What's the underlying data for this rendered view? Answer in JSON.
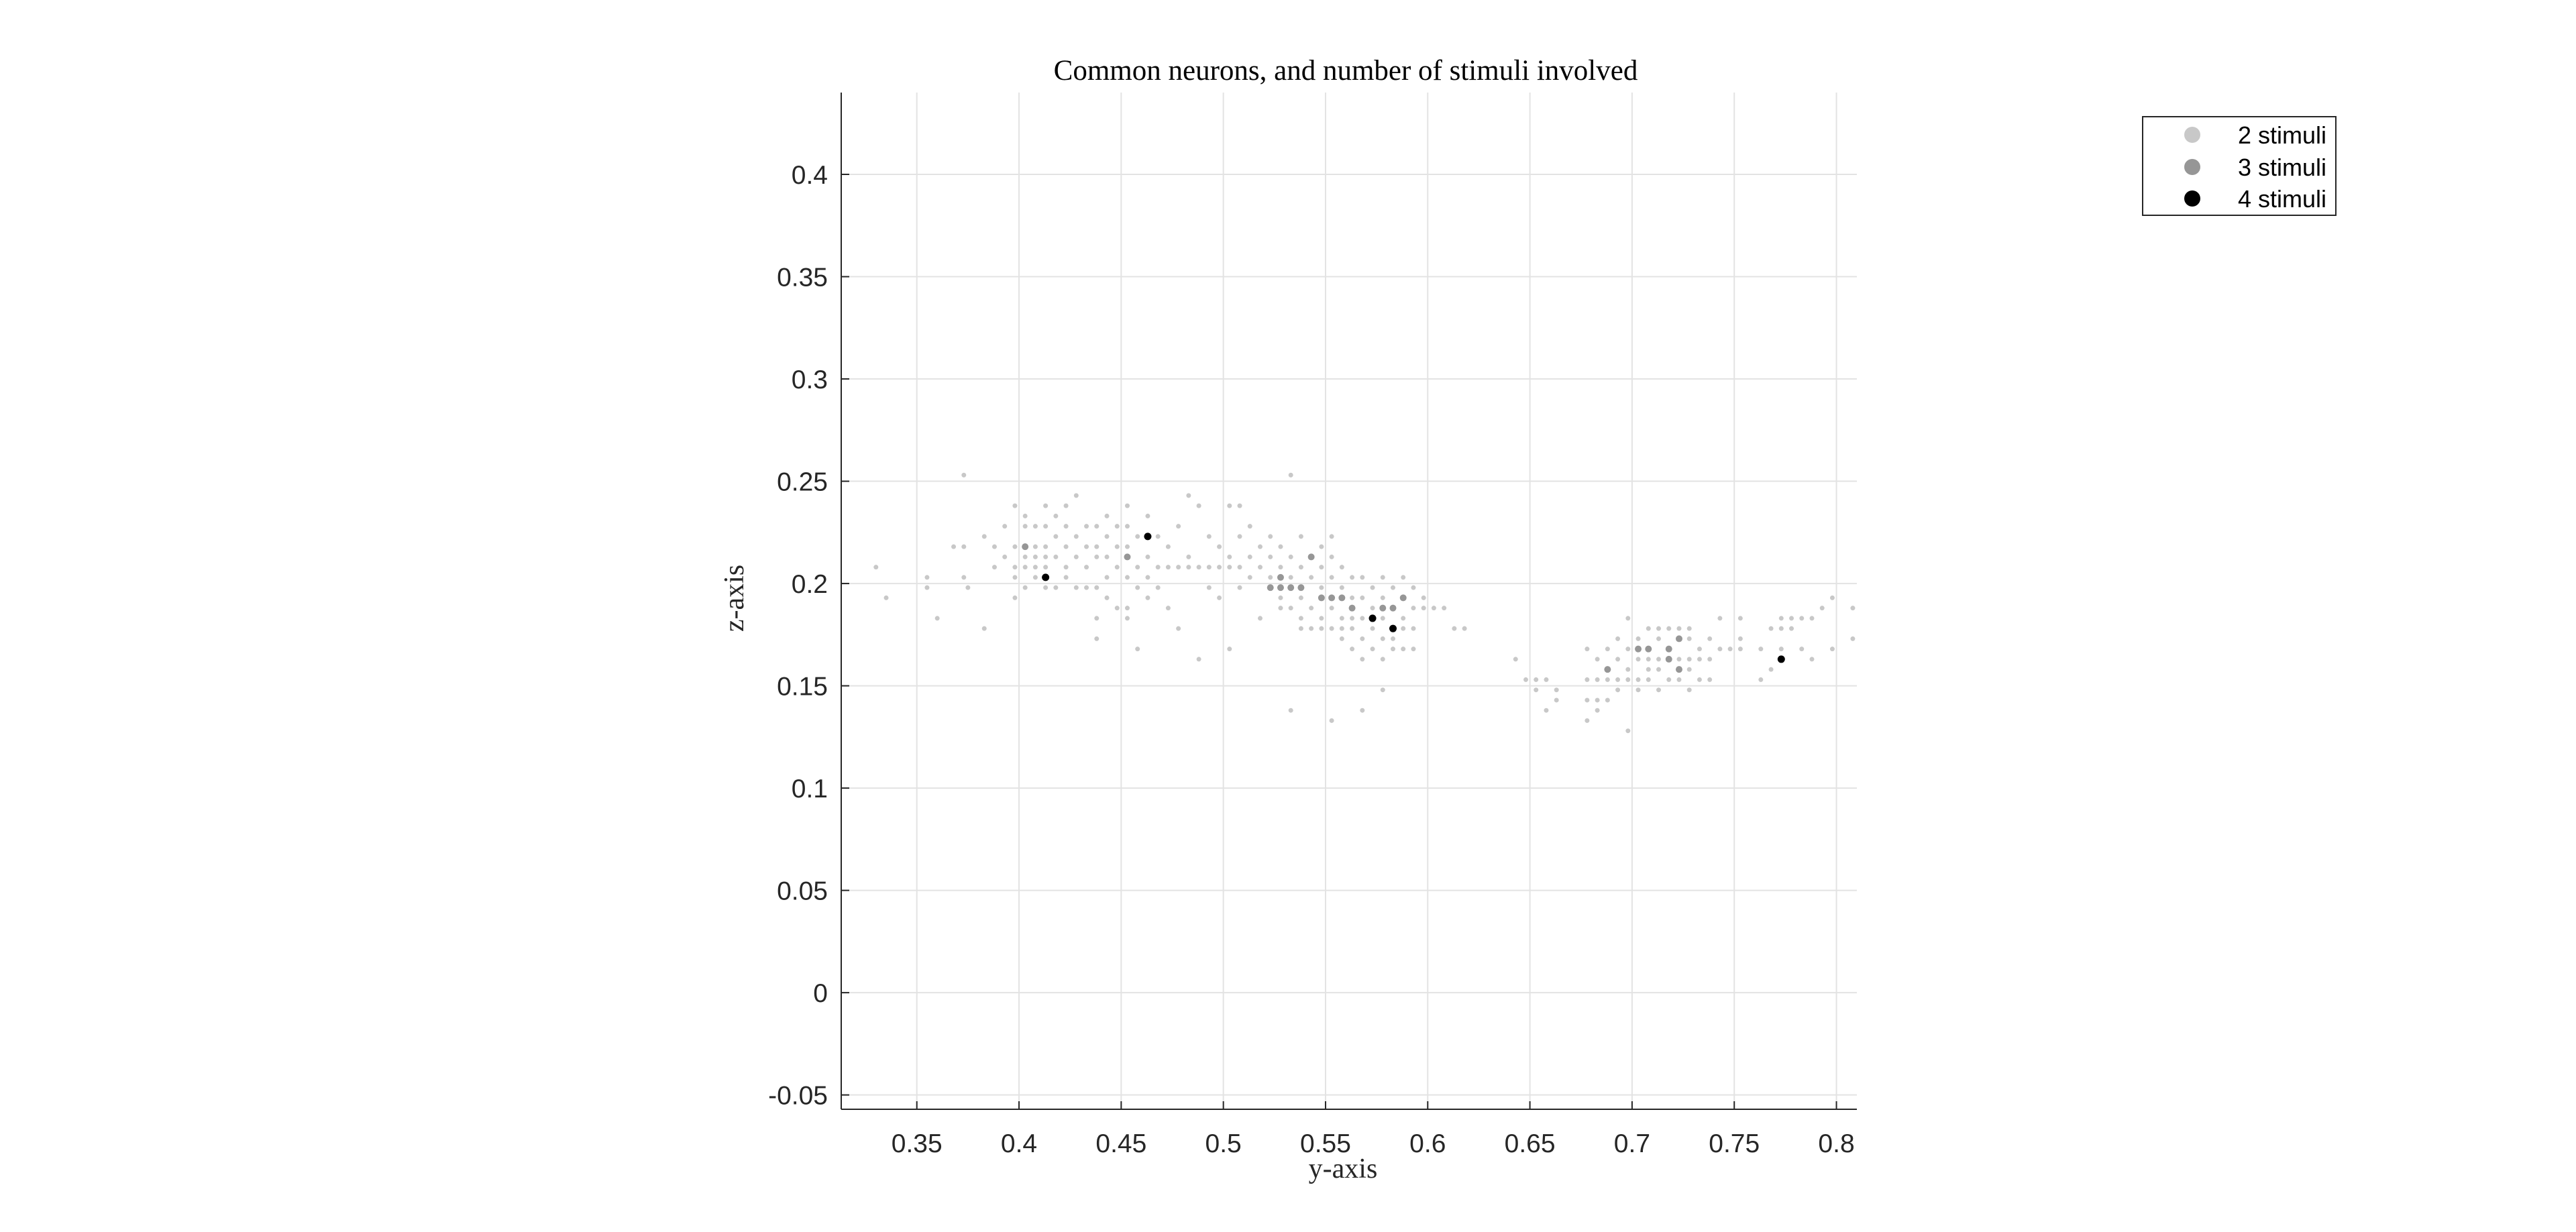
{
  "chart_data": {
    "type": "scatter",
    "title": "Common neurons, and number of stimuli involved",
    "xlabel": "y-axis",
    "ylabel": "z-axis",
    "xlim": [
      0.313,
      0.81
    ],
    "ylim": [
      -0.057,
      0.44
    ],
    "grid": true,
    "legend_position": "top-right",
    "x_ticks": [
      "0.35",
      "0.4",
      "0.45",
      "0.5",
      "0.55",
      "0.6",
      "0.65",
      "0.7",
      "0.75",
      "0.8"
    ],
    "y_ticks": [
      "-0.05",
      "0",
      "0.05",
      "0.1",
      "0.15",
      "0.2",
      "0.25",
      "0.3",
      "0.35",
      "0.4"
    ],
    "series": [
      {
        "name": "2 stimuli",
        "color": "#c8c8c8",
        "points": [
          [
            0.33,
            0.208
          ],
          [
            0.335,
            0.193
          ],
          [
            0.355,
            0.203
          ],
          [
            0.355,
            0.198
          ],
          [
            0.36,
            0.183
          ],
          [
            0.368,
            0.218
          ],
          [
            0.373,
            0.218
          ],
          [
            0.373,
            0.253
          ],
          [
            0.373,
            0.203
          ],
          [
            0.375,
            0.198
          ],
          [
            0.383,
            0.223
          ],
          [
            0.383,
            0.178
          ],
          [
            0.388,
            0.218
          ],
          [
            0.388,
            0.208
          ],
          [
            0.393,
            0.228
          ],
          [
            0.393,
            0.213
          ],
          [
            0.398,
            0.238
          ],
          [
            0.398,
            0.218
          ],
          [
            0.398,
            0.208
          ],
          [
            0.398,
            0.203
          ],
          [
            0.398,
            0.193
          ],
          [
            0.403,
            0.233
          ],
          [
            0.403,
            0.228
          ],
          [
            0.403,
            0.213
          ],
          [
            0.403,
            0.208
          ],
          [
            0.403,
            0.198
          ],
          [
            0.408,
            0.228
          ],
          [
            0.408,
            0.218
          ],
          [
            0.408,
            0.213
          ],
          [
            0.408,
            0.208
          ],
          [
            0.408,
            0.203
          ],
          [
            0.413,
            0.238
          ],
          [
            0.413,
            0.228
          ],
          [
            0.413,
            0.218
          ],
          [
            0.413,
            0.213
          ],
          [
            0.413,
            0.208
          ],
          [
            0.413,
            0.198
          ],
          [
            0.418,
            0.233
          ],
          [
            0.418,
            0.223
          ],
          [
            0.418,
            0.213
          ],
          [
            0.418,
            0.198
          ],
          [
            0.423,
            0.238
          ],
          [
            0.423,
            0.228
          ],
          [
            0.423,
            0.218
          ],
          [
            0.423,
            0.208
          ],
          [
            0.423,
            0.203
          ],
          [
            0.428,
            0.243
          ],
          [
            0.428,
            0.223
          ],
          [
            0.428,
            0.213
          ],
          [
            0.428,
            0.198
          ],
          [
            0.433,
            0.228
          ],
          [
            0.433,
            0.218
          ],
          [
            0.433,
            0.208
          ],
          [
            0.433,
            0.198
          ],
          [
            0.438,
            0.228
          ],
          [
            0.438,
            0.218
          ],
          [
            0.438,
            0.213
          ],
          [
            0.438,
            0.198
          ],
          [
            0.438,
            0.183
          ],
          [
            0.438,
            0.173
          ],
          [
            0.443,
            0.233
          ],
          [
            0.443,
            0.223
          ],
          [
            0.443,
            0.213
          ],
          [
            0.443,
            0.203
          ],
          [
            0.443,
            0.193
          ],
          [
            0.448,
            0.228
          ],
          [
            0.448,
            0.218
          ],
          [
            0.448,
            0.208
          ],
          [
            0.448,
            0.188
          ],
          [
            0.453,
            0.238
          ],
          [
            0.453,
            0.228
          ],
          [
            0.453,
            0.218
          ],
          [
            0.453,
            0.203
          ],
          [
            0.453,
            0.188
          ],
          [
            0.453,
            0.183
          ],
          [
            0.458,
            0.223
          ],
          [
            0.458,
            0.208
          ],
          [
            0.458,
            0.198
          ],
          [
            0.458,
            0.168
          ],
          [
            0.463,
            0.233
          ],
          [
            0.463,
            0.213
          ],
          [
            0.463,
            0.203
          ],
          [
            0.463,
            0.193
          ],
          [
            0.468,
            0.223
          ],
          [
            0.468,
            0.208
          ],
          [
            0.468,
            0.198
          ],
          [
            0.473,
            0.218
          ],
          [
            0.473,
            0.208
          ],
          [
            0.473,
            0.188
          ],
          [
            0.478,
            0.228
          ],
          [
            0.478,
            0.208
          ],
          [
            0.478,
            0.178
          ],
          [
            0.483,
            0.243
          ],
          [
            0.483,
            0.213
          ],
          [
            0.483,
            0.208
          ],
          [
            0.488,
            0.238
          ],
          [
            0.488,
            0.208
          ],
          [
            0.488,
            0.163
          ],
          [
            0.493,
            0.223
          ],
          [
            0.493,
            0.208
          ],
          [
            0.493,
            0.198
          ],
          [
            0.498,
            0.218
          ],
          [
            0.498,
            0.208
          ],
          [
            0.498,
            0.193
          ],
          [
            0.503,
            0.238
          ],
          [
            0.503,
            0.213
          ],
          [
            0.503,
            0.208
          ],
          [
            0.503,
            0.168
          ],
          [
            0.508,
            0.238
          ],
          [
            0.508,
            0.223
          ],
          [
            0.508,
            0.208
          ],
          [
            0.508,
            0.198
          ],
          [
            0.513,
            0.228
          ],
          [
            0.513,
            0.213
          ],
          [
            0.513,
            0.203
          ],
          [
            0.518,
            0.218
          ],
          [
            0.518,
            0.208
          ],
          [
            0.518,
            0.183
          ],
          [
            0.523,
            0.223
          ],
          [
            0.523,
            0.213
          ],
          [
            0.523,
            0.203
          ],
          [
            0.528,
            0.218
          ],
          [
            0.528,
            0.208
          ],
          [
            0.528,
            0.193
          ],
          [
            0.528,
            0.188
          ],
          [
            0.533,
            0.213
          ],
          [
            0.533,
            0.203
          ],
          [
            0.533,
            0.188
          ],
          [
            0.533,
            0.253
          ],
          [
            0.533,
            0.138
          ],
          [
            0.538,
            0.223
          ],
          [
            0.538,
            0.208
          ],
          [
            0.538,
            0.193
          ],
          [
            0.538,
            0.183
          ],
          [
            0.538,
            0.178
          ],
          [
            0.543,
            0.213
          ],
          [
            0.543,
            0.203
          ],
          [
            0.543,
            0.188
          ],
          [
            0.543,
            0.178
          ],
          [
            0.548,
            0.218
          ],
          [
            0.548,
            0.208
          ],
          [
            0.548,
            0.198
          ],
          [
            0.548,
            0.183
          ],
          [
            0.548,
            0.178
          ],
          [
            0.553,
            0.223
          ],
          [
            0.553,
            0.213
          ],
          [
            0.553,
            0.203
          ],
          [
            0.553,
            0.188
          ],
          [
            0.553,
            0.178
          ],
          [
            0.553,
            0.133
          ],
          [
            0.558,
            0.208
          ],
          [
            0.558,
            0.198
          ],
          [
            0.558,
            0.183
          ],
          [
            0.558,
            0.178
          ],
          [
            0.558,
            0.173
          ],
          [
            0.563,
            0.203
          ],
          [
            0.563,
            0.193
          ],
          [
            0.563,
            0.183
          ],
          [
            0.563,
            0.178
          ],
          [
            0.563,
            0.168
          ],
          [
            0.568,
            0.203
          ],
          [
            0.568,
            0.193
          ],
          [
            0.568,
            0.183
          ],
          [
            0.568,
            0.173
          ],
          [
            0.568,
            0.163
          ],
          [
            0.568,
            0.138
          ],
          [
            0.573,
            0.198
          ],
          [
            0.573,
            0.188
          ],
          [
            0.573,
            0.178
          ],
          [
            0.573,
            0.168
          ],
          [
            0.578,
            0.203
          ],
          [
            0.578,
            0.193
          ],
          [
            0.578,
            0.183
          ],
          [
            0.578,
            0.173
          ],
          [
            0.578,
            0.163
          ],
          [
            0.578,
            0.148
          ],
          [
            0.583,
            0.198
          ],
          [
            0.583,
            0.188
          ],
          [
            0.583,
            0.173
          ],
          [
            0.583,
            0.168
          ],
          [
            0.588,
            0.203
          ],
          [
            0.588,
            0.183
          ],
          [
            0.588,
            0.178
          ],
          [
            0.588,
            0.168
          ],
          [
            0.593,
            0.198
          ],
          [
            0.593,
            0.188
          ],
          [
            0.593,
            0.178
          ],
          [
            0.593,
            0.168
          ],
          [
            0.598,
            0.193
          ],
          [
            0.598,
            0.188
          ],
          [
            0.603,
            0.188
          ],
          [
            0.608,
            0.188
          ],
          [
            0.613,
            0.178
          ],
          [
            0.618,
            0.178
          ],
          [
            0.643,
            0.163
          ],
          [
            0.648,
            0.153
          ],
          [
            0.653,
            0.153
          ],
          [
            0.653,
            0.148
          ],
          [
            0.658,
            0.153
          ],
          [
            0.658,
            0.138
          ],
          [
            0.663,
            0.148
          ],
          [
            0.663,
            0.143
          ],
          [
            0.678,
            0.168
          ],
          [
            0.678,
            0.153
          ],
          [
            0.678,
            0.143
          ],
          [
            0.678,
            0.133
          ],
          [
            0.683,
            0.163
          ],
          [
            0.683,
            0.153
          ],
          [
            0.683,
            0.143
          ],
          [
            0.683,
            0.138
          ],
          [
            0.688,
            0.168
          ],
          [
            0.688,
            0.153
          ],
          [
            0.688,
            0.143
          ],
          [
            0.693,
            0.173
          ],
          [
            0.693,
            0.163
          ],
          [
            0.693,
            0.153
          ],
          [
            0.693,
            0.148
          ],
          [
            0.698,
            0.168
          ],
          [
            0.698,
            0.158
          ],
          [
            0.698,
            0.153
          ],
          [
            0.698,
            0.128
          ],
          [
            0.698,
            0.183
          ],
          [
            0.703,
            0.173
          ],
          [
            0.703,
            0.163
          ],
          [
            0.703,
            0.153
          ],
          [
            0.703,
            0.148
          ],
          [
            0.708,
            0.178
          ],
          [
            0.708,
            0.163
          ],
          [
            0.708,
            0.158
          ],
          [
            0.708,
            0.153
          ],
          [
            0.713,
            0.178
          ],
          [
            0.713,
            0.173
          ],
          [
            0.713,
            0.163
          ],
          [
            0.713,
            0.158
          ],
          [
            0.713,
            0.148
          ],
          [
            0.718,
            0.178
          ],
          [
            0.718,
            0.163
          ],
          [
            0.718,
            0.153
          ],
          [
            0.723,
            0.178
          ],
          [
            0.723,
            0.163
          ],
          [
            0.723,
            0.153
          ],
          [
            0.728,
            0.178
          ],
          [
            0.728,
            0.173
          ],
          [
            0.728,
            0.163
          ],
          [
            0.728,
            0.158
          ],
          [
            0.728,
            0.148
          ],
          [
            0.733,
            0.168
          ],
          [
            0.733,
            0.163
          ],
          [
            0.733,
            0.153
          ],
          [
            0.738,
            0.173
          ],
          [
            0.738,
            0.163
          ],
          [
            0.738,
            0.153
          ],
          [
            0.743,
            0.183
          ],
          [
            0.743,
            0.168
          ],
          [
            0.748,
            0.168
          ],
          [
            0.753,
            0.183
          ],
          [
            0.753,
            0.173
          ],
          [
            0.753,
            0.168
          ],
          [
            0.763,
            0.168
          ],
          [
            0.763,
            0.153
          ],
          [
            0.768,
            0.178
          ],
          [
            0.768,
            0.158
          ],
          [
            0.773,
            0.183
          ],
          [
            0.773,
            0.178
          ],
          [
            0.773,
            0.168
          ],
          [
            0.778,
            0.183
          ],
          [
            0.778,
            0.178
          ],
          [
            0.783,
            0.183
          ],
          [
            0.783,
            0.168
          ],
          [
            0.788,
            0.183
          ],
          [
            0.788,
            0.163
          ],
          [
            0.793,
            0.188
          ],
          [
            0.798,
            0.193
          ],
          [
            0.798,
            0.168
          ],
          [
            0.808,
            0.188
          ],
          [
            0.808,
            0.173
          ]
        ]
      },
      {
        "name": "3 stimuli",
        "color": "#969696",
        "points": [
          [
            0.403,
            0.218
          ],
          [
            0.453,
            0.213
          ],
          [
            0.523,
            0.198
          ],
          [
            0.528,
            0.203
          ],
          [
            0.528,
            0.198
          ],
          [
            0.533,
            0.198
          ],
          [
            0.538,
            0.198
          ],
          [
            0.543,
            0.213
          ],
          [
            0.548,
            0.193
          ],
          [
            0.553,
            0.193
          ],
          [
            0.558,
            0.193
          ],
          [
            0.563,
            0.188
          ],
          [
            0.578,
            0.188
          ],
          [
            0.583,
            0.188
          ],
          [
            0.588,
            0.193
          ],
          [
            0.688,
            0.158
          ],
          [
            0.703,
            0.168
          ],
          [
            0.708,
            0.168
          ],
          [
            0.718,
            0.168
          ],
          [
            0.718,
            0.163
          ],
          [
            0.723,
            0.173
          ],
          [
            0.723,
            0.158
          ]
        ]
      },
      {
        "name": "4 stimuli",
        "color": "#000000",
        "points": [
          [
            0.413,
            0.203
          ],
          [
            0.463,
            0.223
          ],
          [
            0.573,
            0.183
          ],
          [
            0.583,
            0.178
          ],
          [
            0.773,
            0.163
          ]
        ]
      }
    ]
  }
}
